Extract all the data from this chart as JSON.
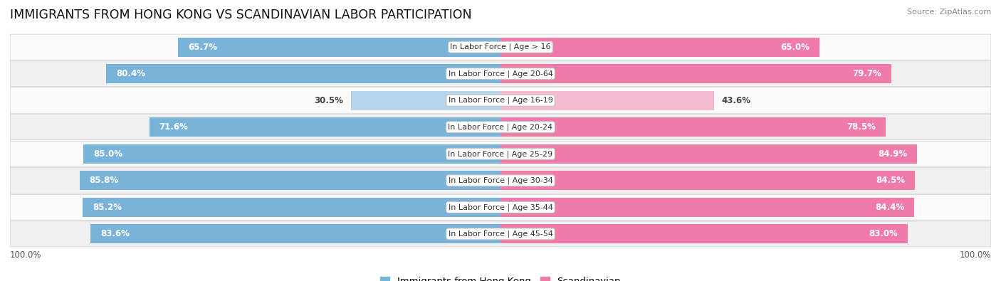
{
  "title": "IMMIGRANTS FROM HONG KONG VS SCANDINAVIAN LABOR PARTICIPATION",
  "source": "Source: ZipAtlas.com",
  "categories": [
    "In Labor Force | Age > 16",
    "In Labor Force | Age 20-64",
    "In Labor Force | Age 16-19",
    "In Labor Force | Age 20-24",
    "In Labor Force | Age 25-29",
    "In Labor Force | Age 30-34",
    "In Labor Force | Age 35-44",
    "In Labor Force | Age 45-54"
  ],
  "hk_values": [
    65.7,
    80.4,
    30.5,
    71.6,
    85.0,
    85.8,
    85.2,
    83.6
  ],
  "scand_values": [
    65.0,
    79.7,
    43.6,
    78.5,
    84.9,
    84.5,
    84.4,
    83.0
  ],
  "hk_color": "#7ab3d9",
  "hk_light_color": "#b8d4ea",
  "scand_color": "#f07aaa",
  "scand_light_color": "#f4bbd0",
  "bar_height": 0.72,
  "row_colors": [
    "#f0f0f0",
    "#fafafa"
  ],
  "max_val": 100.0,
  "label_fontsize": 8.5,
  "cat_fontsize": 8.0,
  "title_fontsize": 12.5,
  "legend_fontsize": 9.5
}
